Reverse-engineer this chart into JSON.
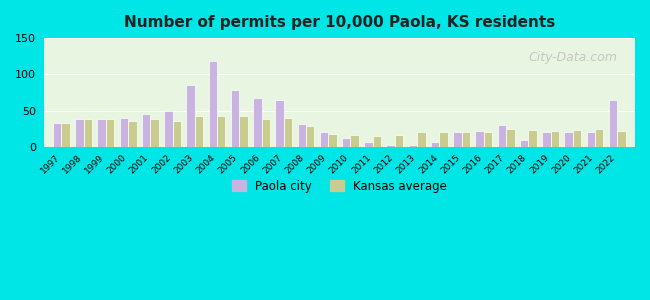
{
  "title": "Number of permits per 10,000 Paola, KS residents",
  "years": [
    1997,
    1998,
    1999,
    2000,
    2001,
    2002,
    2003,
    2004,
    2005,
    2006,
    2007,
    2008,
    2009,
    2010,
    2011,
    2012,
    2013,
    2014,
    2015,
    2016,
    2017,
    2018,
    2019,
    2020,
    2021,
    2022
  ],
  "paola": [
    33,
    38,
    38,
    40,
    45,
    50,
    85,
    118,
    78,
    68,
    65,
    32,
    20,
    12,
    7,
    2,
    2,
    6,
    21,
    22,
    30,
    10,
    21,
    21,
    20,
    65
  ],
  "kansas": [
    33,
    38,
    38,
    35,
    38,
    36,
    42,
    42,
    42,
    38,
    40,
    28,
    18,
    16,
    15,
    16,
    20,
    20,
    20,
    21,
    24,
    23,
    22,
    23,
    24,
    22
  ],
  "paola_color": "#c9b3e0",
  "kansas_color": "#c8cc8e",
  "background_outer": "#00e5e5",
  "background_inner_top": "#e8f5e0",
  "background_inner_bottom": "#d8f0f0",
  "ylim": [
    0,
    150
  ],
  "yticks": [
    0,
    50,
    100,
    150
  ],
  "legend_paola": "Paola city",
  "legend_kansas": "Kansas average",
  "watermark": "City-Data.com"
}
